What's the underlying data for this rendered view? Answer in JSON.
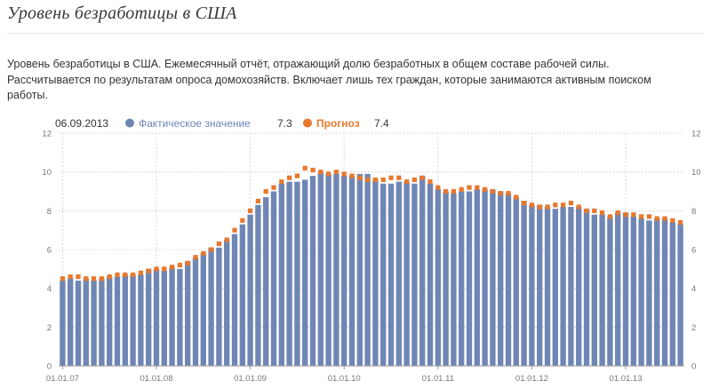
{
  "page": {
    "title": "Уровень безработицы в США",
    "description": "Уровень безработицы в США. Ежемесячный отчёт, отражающий долю безработных в общем составе рабочей силы. Рассчитывается по результатам опроса домохозяйств. Включает лишь тех граждан, которые занимаются активным поиском работы."
  },
  "legend": {
    "date": "06.09.2013",
    "actual_label": "Фактическое значение",
    "actual_value": "7.3",
    "forecast_label": "Прогноз",
    "forecast_value": "7.4"
  },
  "colors": {
    "actual": "#6f86b5",
    "forecast": "#e8782c",
    "grid": "#d0d0d0"
  },
  "chart_data": {
    "type": "bar",
    "ylim": [
      0,
      12
    ],
    "yticks": [
      0,
      2,
      4,
      6,
      8,
      10,
      12
    ],
    "x_tick_labels": [
      "01.01.07",
      "01.01.08",
      "01.01.09",
      "01.01.10",
      "01.01.11",
      "01.01.12",
      "01.01.13"
    ],
    "x_tick_indices": [
      0,
      12,
      24,
      36,
      48,
      60,
      72
    ],
    "grid": true,
    "legend_position": "top",
    "series": [
      {
        "name": "Фактическое значение",
        "type": "bar",
        "values": [
          4.4,
          4.5,
          4.4,
          4.5,
          4.4,
          4.5,
          4.6,
          4.6,
          4.7,
          4.7,
          4.7,
          5.0,
          5.0,
          4.9,
          5.1,
          5.0,
          5.4,
          5.6,
          5.8,
          6.1,
          6.1,
          6.5,
          6.8,
          7.3,
          7.8,
          8.3,
          8.7,
          9.0,
          9.4,
          9.5,
          9.5,
          9.6,
          9.8,
          10.0,
          9.9,
          9.9,
          9.8,
          9.8,
          9.9,
          9.9,
          9.6,
          9.4,
          9.4,
          9.5,
          9.5,
          9.4,
          9.8,
          9.4,
          9.1,
          9.0,
          8.9,
          9.0,
          9.0,
          9.1,
          9.1,
          9.1,
          9.0,
          8.9,
          8.7,
          8.5,
          8.3,
          8.3,
          8.2,
          8.1,
          8.2,
          8.2,
          8.2,
          8.1,
          7.8,
          7.8,
          7.7,
          7.9,
          7.9,
          7.7,
          7.6,
          7.5,
          7.6,
          7.6,
          7.4,
          7.3
        ]
      },
      {
        "name": "Прогноз",
        "type": "scatter",
        "values": [
          4.5,
          4.6,
          4.6,
          4.5,
          4.5,
          4.5,
          4.6,
          4.7,
          4.7,
          4.7,
          4.8,
          4.9,
          5.0,
          5.0,
          5.1,
          5.2,
          5.3,
          5.6,
          5.8,
          6.0,
          6.3,
          6.5,
          7.0,
          7.5,
          8.0,
          8.5,
          9.0,
          9.2,
          9.5,
          9.7,
          9.8,
          10.2,
          10.1,
          10.0,
          9.9,
          10.0,
          9.9,
          9.8,
          9.7,
          9.6,
          9.6,
          9.6,
          9.7,
          9.7,
          9.5,
          9.6,
          9.7,
          9.5,
          9.2,
          9.0,
          9.0,
          9.1,
          9.2,
          9.2,
          9.1,
          9.0,
          8.9,
          8.9,
          8.7,
          8.4,
          8.3,
          8.2,
          8.2,
          8.3,
          8.3,
          8.4,
          8.2,
          8.0,
          8.0,
          7.9,
          7.7,
          7.9,
          7.8,
          7.8,
          7.7,
          7.7,
          7.6,
          7.6,
          7.5,
          7.4
        ]
      }
    ]
  }
}
